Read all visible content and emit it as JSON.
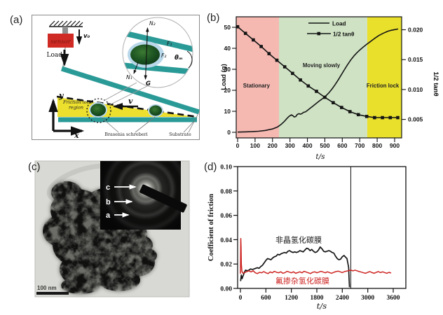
{
  "figure": {
    "panels": {
      "a": {
        "label": "(a)",
        "sensor": "sensor",
        "v0": "v₀",
        "load": "Load",
        "friction_region_line1": "Friction lock-",
        "friction_region_line2": "region",
        "velocity": "v",
        "axis_x": "x",
        "axis_y": "y",
        "brasenia": "Brasenia schreberi",
        "substrate": "Substrate",
        "inset": {
          "n2": "N₂",
          "n1": "N₁",
          "f1": "F₁",
          "f2": "F₂",
          "theta": "θₘ",
          "g": "G"
        }
      },
      "b": {
        "label": "(b)"
      },
      "c": {
        "label": "(c)",
        "scale_bar": "100 nm",
        "rings": {
          "c": "c",
          "b": "b",
          "a": "a"
        }
      },
      "d": {
        "label": "(d)"
      }
    }
  },
  "colors": {
    "teal": "#2a9a97",
    "sensor_red": "#cf2b24",
    "wedge_yellow": "#ecdf2d",
    "halo_blue": "#b9d8ea",
    "seed_green": "#1d4f1e",
    "region_pink": "#f5b9b2",
    "region_green": "#cfe2c4",
    "region_yellow": "#e9e02c",
    "curve_black": "#141414",
    "curve_red": "#cc2320"
  },
  "chart_data": [
    {
      "panel": "b",
      "type": "line",
      "xlabel": "t/s",
      "ylabel_left": "Load (g)",
      "ylabel_right": "1/2 tanθ",
      "xlim": [
        -8,
        940
      ],
      "xticks": [
        0,
        100,
        200,
        300,
        400,
        500,
        600,
        700,
        800,
        900
      ],
      "ylim_left": [
        -2.7,
        55
      ],
      "yticks_left": [
        0,
        10,
        20,
        30,
        40,
        50
      ],
      "ylim_right": [
        0.0022,
        0.0225
      ],
      "yticks_right": [
        0.005,
        0.01,
        0.015,
        0.02
      ],
      "grid": false,
      "legend_position": "top-center",
      "regions": [
        {
          "label": "Stationary",
          "x0": -8,
          "x1": 237,
          "color": "#f5b9b2"
        },
        {
          "label": "Moving slowly",
          "x0": 237,
          "x1": 743,
          "color": "#cfe2c4"
        },
        {
          "label": "Friction lock",
          "x0": 743,
          "x1": 940,
          "color": "#e9e02c"
        }
      ],
      "series": [
        {
          "name": "Load",
          "axis": "left",
          "color": "#141414",
          "marker": "none",
          "points": [
            [
              0,
              0.1
            ],
            [
              40,
              0.2
            ],
            [
              80,
              0.3
            ],
            [
              120,
              0.5
            ],
            [
              160,
              0.9
            ],
            [
              200,
              1.6
            ],
            [
              230,
              2.6
            ],
            [
              250,
              3.8
            ],
            [
              268,
              5.2
            ],
            [
              283,
              6.6
            ],
            [
              295,
              7.6
            ],
            [
              308,
              8.3
            ],
            [
              316,
              8.0
            ],
            [
              324,
              7.3
            ],
            [
              333,
              7.5
            ],
            [
              342,
              8.5
            ],
            [
              352,
              8.9
            ],
            [
              360,
              8.6
            ],
            [
              368,
              8.9
            ],
            [
              378,
              9.5
            ],
            [
              388,
              9.7
            ],
            [
              398,
              10.3
            ],
            [
              415,
              11.4
            ],
            [
              432,
              12.5
            ],
            [
              450,
              13.7
            ],
            [
              468,
              14.9
            ],
            [
              486,
              16.0
            ],
            [
              504,
              17.2
            ],
            [
              522,
              18.7
            ],
            [
              540,
              20.5
            ],
            [
              558,
              22.6
            ],
            [
              576,
              24.9
            ],
            [
              594,
              27.3
            ],
            [
              612,
              29.8
            ],
            [
              630,
              32.2
            ],
            [
              648,
              34.4
            ],
            [
              666,
              36.3
            ],
            [
              684,
              37.9
            ],
            [
              702,
              39.3
            ],
            [
              720,
              40.6
            ],
            [
              738,
              41.8
            ],
            [
              756,
              42.9
            ],
            [
              774,
              44.0
            ],
            [
              792,
              45.1
            ],
            [
              810,
              46.1
            ],
            [
              828,
              46.9
            ],
            [
              846,
              47.6
            ],
            [
              864,
              48.2
            ],
            [
              882,
              48.6
            ],
            [
              900,
              48.9
            ],
            [
              920,
              49.2
            ]
          ]
        },
        {
          "name": "1/2 tanθ",
          "axis": "right",
          "color": "#141414",
          "marker": "square",
          "points": [
            [
              0,
              0.0205
            ],
            [
              45,
              0.0194
            ],
            [
              90,
              0.0183
            ],
            [
              135,
              0.0172
            ],
            [
              180,
              0.016
            ],
            [
              225,
              0.0149
            ],
            [
              270,
              0.0138
            ],
            [
              315,
              0.0127
            ],
            [
              360,
              0.0116
            ],
            [
              405,
              0.0106
            ],
            [
              452,
              0.0097
            ],
            [
              500,
              0.0087
            ],
            [
              548,
              0.0078
            ],
            [
              596,
              0.007
            ],
            [
              644,
              0.0063
            ],
            [
              692,
              0.0058
            ],
            [
              740,
              0.0055
            ],
            [
              785,
              0.0053
            ],
            [
              830,
              0.0053
            ],
            [
              875,
              0.0053
            ],
            [
              918,
              0.0053
            ]
          ]
        }
      ]
    },
    {
      "panel": "d",
      "type": "line",
      "xlabel": "t/s",
      "ylabel": "Coefficient of friction",
      "xlim": [
        -66,
        3900
      ],
      "xticks": [
        0,
        600,
        1200,
        1800,
        2400,
        3000,
        3600
      ],
      "ylim": [
        0,
        0.1
      ],
      "yticks": [
        0,
        0.02,
        0.04,
        0.06,
        0.08,
        0.1
      ],
      "grid": false,
      "end_marker_line_x": 2600,
      "series": [
        {
          "name": "非晶氢化碳膜",
          "color": "#141414",
          "label_pos": [
            825,
            0.04
          ],
          "points": [
            [
              5,
              0.006
            ],
            [
              20,
              0.011
            ],
            [
              40,
              0.008
            ],
            [
              60,
              0.01
            ],
            [
              90,
              0.013
            ],
            [
              120,
              0.015
            ],
            [
              160,
              0.0145
            ],
            [
              200,
              0.015
            ],
            [
              240,
              0.016
            ],
            [
              280,
              0.0155
            ],
            [
              320,
              0.016
            ],
            [
              360,
              0.0165
            ],
            [
              400,
              0.017
            ],
            [
              440,
              0.0165
            ],
            [
              480,
              0.018
            ],
            [
              520,
              0.019
            ],
            [
              560,
              0.021
            ],
            [
              600,
              0.023
            ],
            [
              640,
              0.0245
            ],
            [
              680,
              0.024
            ],
            [
              720,
              0.0235
            ],
            [
              760,
              0.025
            ],
            [
              800,
              0.026
            ],
            [
              840,
              0.0265
            ],
            [
              880,
              0.028
            ],
            [
              920,
              0.0275
            ],
            [
              960,
              0.0285
            ],
            [
              1000,
              0.029
            ],
            [
              1040,
              0.0295
            ],
            [
              1080,
              0.029
            ],
            [
              1120,
              0.0305
            ],
            [
              1160,
              0.031
            ],
            [
              1200,
              0.03
            ],
            [
              1240,
              0.0295
            ],
            [
              1280,
              0.03
            ],
            [
              1320,
              0.0295
            ],
            [
              1360,
              0.03
            ],
            [
              1400,
              0.031
            ],
            [
              1440,
              0.0305
            ],
            [
              1480,
              0.03
            ],
            [
              1520,
              0.0315
            ],
            [
              1560,
              0.033
            ],
            [
              1600,
              0.0325
            ],
            [
              1640,
              0.031
            ],
            [
              1680,
              0.032
            ],
            [
              1720,
              0.0305
            ],
            [
              1760,
              0.0295
            ],
            [
              1800,
              0.03
            ],
            [
              1840,
              0.0315
            ],
            [
              1880,
              0.034
            ],
            [
              1920,
              0.0325
            ],
            [
              1960,
              0.0305
            ],
            [
              2000,
              0.03
            ],
            [
              2040,
              0.0305
            ],
            [
              2080,
              0.031
            ],
            [
              2120,
              0.0305
            ],
            [
              2160,
              0.0295
            ],
            [
              2200,
              0.029
            ],
            [
              2240,
              0.0265
            ],
            [
              2280,
              0.0245
            ],
            [
              2320,
              0.0235
            ],
            [
              2360,
              0.024
            ],
            [
              2400,
              0.026
            ],
            [
              2440,
              0.027
            ],
            [
              2480,
              0.0255
            ],
            [
              2510,
              0.0245
            ],
            [
              2530,
              0.021
            ],
            [
              2550,
              0.017
            ],
            [
              2560,
              0.008
            ],
            [
              2570,
              0.001
            ]
          ]
        },
        {
          "name": "氟掺杂氢化碳膜",
          "color": "#cc2320",
          "label_pos": [
            825,
            0.0063
          ],
          "points": [
            [
              0,
              0.012
            ],
            [
              8,
              0.041
            ],
            [
              15,
              0.034
            ],
            [
              22,
              0.02
            ],
            [
              35,
              0.014
            ],
            [
              60,
              0.0125
            ],
            [
              100,
              0.013
            ],
            [
              150,
              0.0138
            ],
            [
              200,
              0.0145
            ],
            [
              250,
              0.0135
            ],
            [
              300,
              0.0145
            ],
            [
              350,
              0.0128
            ],
            [
              400,
              0.0122
            ],
            [
              450,
              0.0132
            ],
            [
              500,
              0.0128
            ],
            [
              550,
              0.0138
            ],
            [
              600,
              0.0128
            ],
            [
              650,
              0.0122
            ],
            [
              700,
              0.0135
            ],
            [
              750,
              0.0128
            ],
            [
              800,
              0.014
            ],
            [
              850,
              0.0132
            ],
            [
              900,
              0.0128
            ],
            [
              950,
              0.0136
            ],
            [
              1000,
              0.0124
            ],
            [
              1050,
              0.013
            ],
            [
              1100,
              0.014
            ],
            [
              1150,
              0.0134
            ],
            [
              1200,
              0.0128
            ],
            [
              1250,
              0.0136
            ],
            [
              1300,
              0.0124
            ],
            [
              1350,
              0.013
            ],
            [
              1400,
              0.0136
            ],
            [
              1450,
              0.0128
            ],
            [
              1500,
              0.014
            ],
            [
              1550,
              0.0134
            ],
            [
              1600,
              0.0128
            ],
            [
              1650,
              0.0122
            ],
            [
              1700,
              0.0132
            ],
            [
              1750,
              0.0136
            ],
            [
              1800,
              0.0128
            ],
            [
              1850,
              0.0134
            ],
            [
              1900,
              0.014
            ],
            [
              1950,
              0.0134
            ],
            [
              2000,
              0.0128
            ],
            [
              2050,
              0.0136
            ],
            [
              2100,
              0.013
            ],
            [
              2150,
              0.0124
            ],
            [
              2200,
              0.0132
            ],
            [
              2250,
              0.0138
            ],
            [
              2300,
              0.0142
            ],
            [
              2350,
              0.0136
            ],
            [
              2400,
              0.013
            ],
            [
              2450,
              0.0138
            ],
            [
              2500,
              0.0142
            ],
            [
              2550,
              0.0146
            ],
            [
              2600,
              0.015
            ],
            [
              2650,
              0.0144
            ],
            [
              2700,
              0.015
            ],
            [
              2750,
              0.0144
            ],
            [
              2800,
              0.0138
            ],
            [
              2850,
              0.0134
            ],
            [
              2900,
              0.0128
            ],
            [
              2950,
              0.0124
            ],
            [
              3000,
              0.0132
            ],
            [
              3050,
              0.0138
            ],
            [
              3100,
              0.013
            ],
            [
              3150,
              0.0124
            ],
            [
              3200,
              0.0132
            ],
            [
              3250,
              0.0138
            ],
            [
              3300,
              0.013
            ],
            [
              3350,
              0.0136
            ],
            [
              3400,
              0.013
            ],
            [
              3450,
              0.0124
            ],
            [
              3500,
              0.0132
            ],
            [
              3550,
              0.0126
            ]
          ]
        }
      ]
    }
  ]
}
